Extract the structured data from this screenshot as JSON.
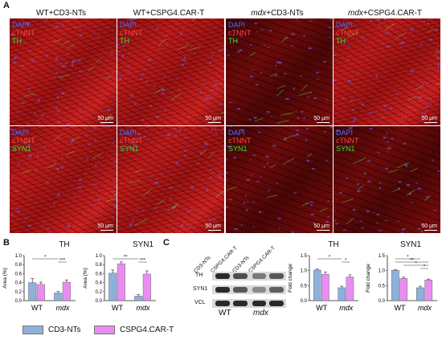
{
  "panel_letters": [
    "A",
    "B",
    "C"
  ],
  "columns": [
    {
      "pre": "WT",
      "post": "+CD3-NTs"
    },
    {
      "pre": "WT",
      "post": "+CSPG4.CAR-T"
    },
    {
      "pre": "mdx",
      "post": "+CD3-NTs"
    },
    {
      "pre": "mdx",
      "post": "+CSPG4.CAR-T"
    }
  ],
  "stain_labels": {
    "dapi": "DAPI",
    "ctnnt": "cTNNT",
    "row1_marker": "TH",
    "row2_marker": "SYN1"
  },
  "scale_bar": "50 μm",
  "colors": {
    "cd3": "#8fb0dc",
    "cspg4": "#e88ef0",
    "dapi": "#4a6cff",
    "ctnnt": "#ff4a4a",
    "marker": "#39e339"
  },
  "legend": {
    "cd3": "CD3-NTs",
    "cspg4": "CSPG4.CAR-T"
  },
  "blot": {
    "lanes": [
      "CD3-NTs",
      "CSPG4.CAR-T",
      "CD3-NTs",
      "CSPG4.CAR-T"
    ],
    "rows": [
      "TH",
      "SYN1",
      "VCL"
    ],
    "groups": [
      "WT",
      "mdx"
    ]
  },
  "chart_data": [
    {
      "type": "bar",
      "title": "TH",
      "ylabel": "Area (%)",
      "categories": [
        "WT",
        "mdx"
      ],
      "ylim": [
        0,
        1.0
      ],
      "yticks": [
        "0.0",
        "0.2",
        "0.4",
        "0.6",
        "0.8",
        "1.0"
      ],
      "series": [
        {
          "name": "CD3-NTs",
          "values": [
            0.4,
            0.17
          ],
          "errors": [
            0.09,
            0.03
          ]
        },
        {
          "name": "CSPG4.CAR-T",
          "values": [
            0.36,
            0.41
          ],
          "errors": [
            0.05,
            0.05
          ]
        }
      ],
      "significance": [
        "*",
        "***"
      ]
    },
    {
      "type": "bar",
      "title": "SYN1",
      "ylabel": "Area (%)",
      "categories": [
        "WT",
        "mdx"
      ],
      "ylim": [
        0,
        1.0
      ],
      "yticks": [
        "0.0",
        "0.2",
        "0.4",
        "0.6",
        "0.8",
        "1.0"
      ],
      "series": [
        {
          "name": "CD3-NTs",
          "values": [
            0.61,
            0.1
          ],
          "errors": [
            0.07,
            0.03
          ]
        },
        {
          "name": "CSPG4.CAR-T",
          "values": [
            0.82,
            0.59
          ],
          "errors": [
            0.04,
            0.07
          ]
        }
      ],
      "significance": [
        "**",
        "***"
      ]
    },
    {
      "type": "bar",
      "title": "TH",
      "ylabel": "Fold change",
      "categories": [
        "WT",
        "mdx"
      ],
      "ylim": [
        0,
        1.5
      ],
      "yticks": [
        "0.0",
        "0.5",
        "1.0",
        "1.5"
      ],
      "series": [
        {
          "name": "CD3-NTs",
          "values": [
            1.02,
            0.43
          ],
          "errors": [
            0.03,
            0.05
          ]
        },
        {
          "name": "CSPG4.CAR-T",
          "values": [
            0.88,
            0.79
          ],
          "errors": [
            0.07,
            0.07
          ]
        }
      ],
      "significance": [
        "*",
        "*"
      ]
    },
    {
      "type": "bar",
      "title": "SYN1",
      "ylabel": "Fold change",
      "categories": [
        "WT",
        "mdx"
      ],
      "ylim": [
        0,
        1.5
      ],
      "yticks": [
        "0.0",
        "0.5",
        "1.0",
        "1.5"
      ],
      "series": [
        {
          "name": "CD3-NTs",
          "values": [
            1.01,
            0.43
          ],
          "errors": [
            0.02,
            0.05
          ]
        },
        {
          "name": "CSPG4.CAR-T",
          "values": [
            0.74,
            0.69
          ],
          "errors": [
            0.04,
            0.03
          ]
        }
      ],
      "significance": [
        "*",
        "**",
        "*",
        "*"
      ]
    }
  ]
}
